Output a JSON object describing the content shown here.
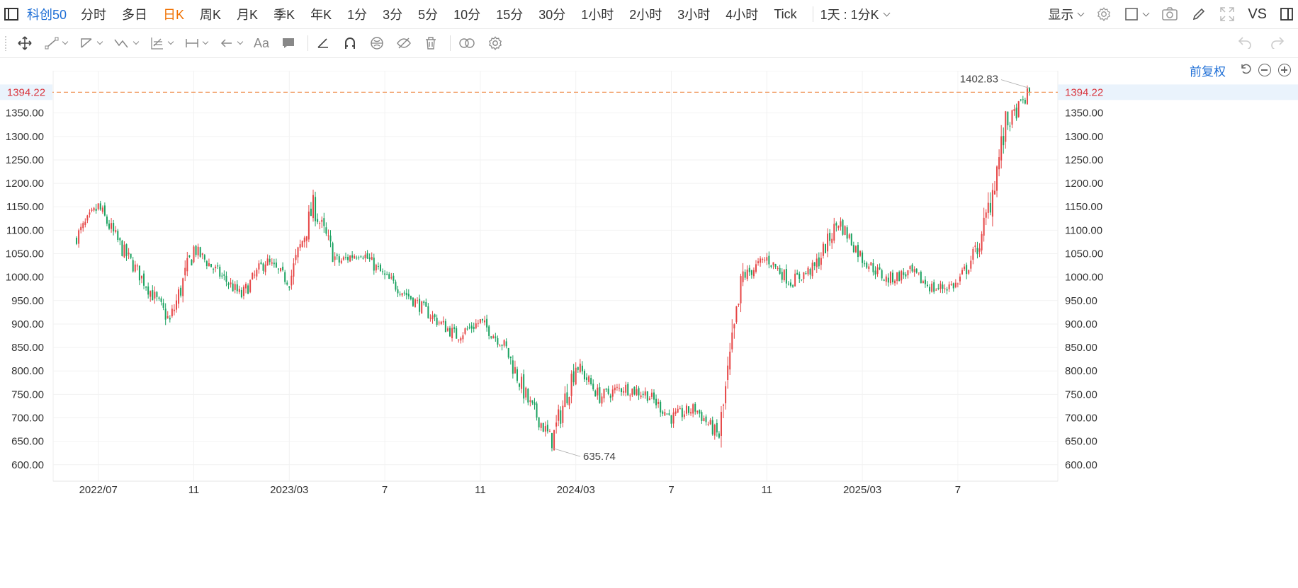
{
  "toolbar": {
    "symbol": "科创50",
    "periods": [
      "分时",
      "多日",
      "日K",
      "周K",
      "月K",
      "季K",
      "年K",
      "1分",
      "3分",
      "5分",
      "10分",
      "15分",
      "30分",
      "1小时",
      "2小时",
      "3小时",
      "4小时",
      "Tick"
    ],
    "active_period": "日K",
    "mode_label": "1天 : 1分K",
    "display_label": "显示",
    "vs_label": "VS"
  },
  "adjustment": {
    "label": "前复权"
  },
  "chart_data": {
    "type": "candlestick",
    "y_ticks": [
      "600.00",
      "650.00",
      "700.00",
      "750.00",
      "800.00",
      "850.00",
      "900.00",
      "950.00",
      "1000.00",
      "1050.00",
      "1100.00",
      "1150.00",
      "1200.00",
      "1250.00",
      "1300.00",
      "1350.00"
    ],
    "ylim": [
      565,
      1440
    ],
    "x_ticks": [
      "2022/07",
      "11",
      "2023/03",
      "7",
      "11",
      "2024/03",
      "7",
      "11",
      "2025/03",
      "7"
    ],
    "current_price": "1394.22",
    "max_label": "1402.83",
    "min_label": "635.74",
    "colors": {
      "up": "#e64646",
      "down": "#1aa260",
      "price_line": "#f0965a",
      "tag_bg": "#eaf3fc",
      "tag_text": "#d9363e"
    },
    "series": [
      {
        "date": "2022-06",
        "close": 1080
      },
      {
        "date": "2022-07",
        "close": 1150
      },
      {
        "date": "2022-08",
        "close": 1060
      },
      {
        "date": "2022-09",
        "close": 985
      },
      {
        "date": "2022-10",
        "close": 905
      },
      {
        "date": "2022-11",
        "close": 1060
      },
      {
        "date": "2022-12",
        "close": 1010
      },
      {
        "date": "2023-01",
        "close": 960
      },
      {
        "date": "2023-02",
        "close": 1035
      },
      {
        "date": "2023-03",
        "close": 990
      },
      {
        "date": "2023-04",
        "close": 1150
      },
      {
        "date": "2023-05",
        "close": 1030
      },
      {
        "date": "2023-06",
        "close": 1055
      },
      {
        "date": "2023-07",
        "close": 1000
      },
      {
        "date": "2023-08",
        "close": 960
      },
      {
        "date": "2023-09",
        "close": 915
      },
      {
        "date": "2023-10",
        "close": 875
      },
      {
        "date": "2023-11",
        "close": 905
      },
      {
        "date": "2023-12",
        "close": 855
      },
      {
        "date": "2024-01",
        "close": 735
      },
      {
        "date": "2024-02",
        "close": 650
      },
      {
        "date": "2024-03",
        "close": 815
      },
      {
        "date": "2024-04",
        "close": 745
      },
      {
        "date": "2024-05",
        "close": 765
      },
      {
        "date": "2024-06",
        "close": 750
      },
      {
        "date": "2024-07",
        "close": 700
      },
      {
        "date": "2024-08",
        "close": 720
      },
      {
        "date": "2024-09",
        "close": 660
      },
      {
        "date": "2024-10",
        "close": 1000
      },
      {
        "date": "2024-11",
        "close": 1040
      },
      {
        "date": "2024-12",
        "close": 990
      },
      {
        "date": "2025-01",
        "close": 1020
      },
      {
        "date": "2025-02",
        "close": 1120
      },
      {
        "date": "2025-03",
        "close": 1040
      },
      {
        "date": "2025-04",
        "close": 995
      },
      {
        "date": "2025-05",
        "close": 1010
      },
      {
        "date": "2025-06",
        "close": 975
      },
      {
        "date": "2025-07",
        "close": 985
      },
      {
        "date": "2025-08",
        "close": 1080
      },
      {
        "date": "2025-09",
        "close": 1320
      },
      {
        "date": "2025-10",
        "close": 1394.22
      }
    ]
  }
}
